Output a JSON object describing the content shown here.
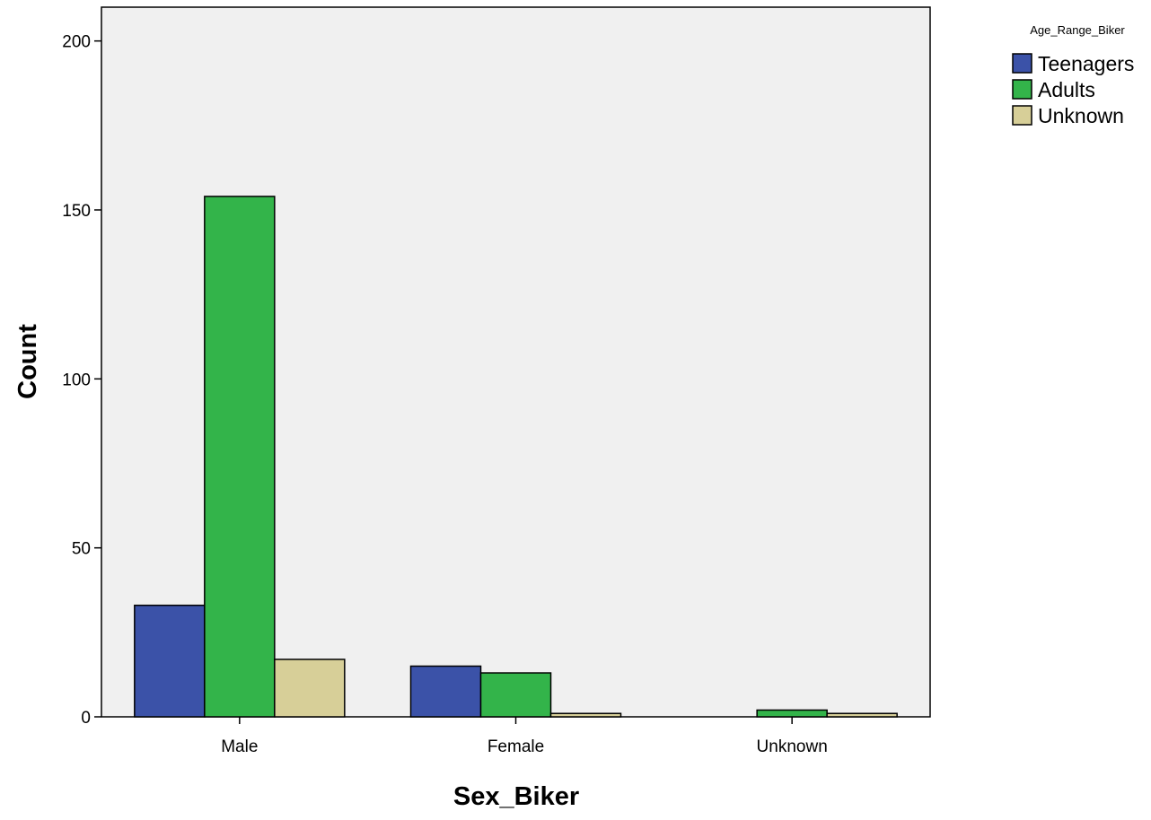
{
  "chart_data": {
    "type": "bar",
    "title": "",
    "xlabel": "Sex_Biker",
    "ylabel": "Count",
    "categories": [
      "Male",
      "Female",
      "Unknown"
    ],
    "series": [
      {
        "name": "Teenagers",
        "color": "#3b52a8",
        "values": [
          33,
          15,
          0
        ]
      },
      {
        "name": "Adults",
        "color": "#33b44a",
        "values": [
          154,
          13,
          2
        ]
      },
      {
        "name": "Unknown",
        "color": "#d7cf98",
        "values": [
          17,
          1,
          1
        ]
      }
    ],
    "ylim": [
      0,
      210
    ],
    "yticks": [
      0,
      50,
      100,
      150,
      200
    ],
    "legend_title": "Age_Range_Biker",
    "legend_position": "top-right",
    "grid": false,
    "plot_background": "#f0f0f0"
  }
}
